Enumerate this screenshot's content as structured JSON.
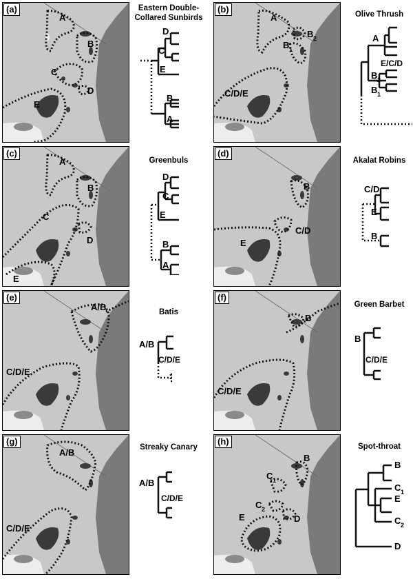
{
  "panels": [
    {
      "letter": "(a)",
      "title": "Eastern Double-Collared Sunbirds",
      "map_labels": [
        "A",
        "B",
        "C",
        "D",
        "E"
      ],
      "tree_labels": [
        "D",
        "C",
        "E",
        "B",
        "A"
      ]
    },
    {
      "letter": "(b)",
      "title": "Olive Thrush",
      "map_labels": [
        "A",
        "B",
        "B",
        "C/D/E"
      ],
      "map_subs": [
        "2",
        "1"
      ],
      "tree_labels": [
        "A",
        "E/C/D",
        "B",
        "B"
      ],
      "tree_subs": [
        "2",
        "1"
      ]
    },
    {
      "letter": "(c)",
      "title": "Greenbuls",
      "map_labels": [
        "A",
        "B",
        "C",
        "D",
        "E"
      ],
      "tree_labels": [
        "D",
        "C",
        "E",
        "B",
        "A"
      ]
    },
    {
      "letter": "(d)",
      "title": "Akalat Robins",
      "map_labels": [
        "B",
        "C/D",
        "E"
      ],
      "tree_labels": [
        "C/D",
        "E",
        "B"
      ]
    },
    {
      "letter": "(e)",
      "title": "Batis",
      "map_labels": [
        "A/B",
        "C/D/E"
      ],
      "tree_labels": [
        "A/B",
        "C/D/E"
      ]
    },
    {
      "letter": "(f)",
      "title": "Green Barbet",
      "map_labels": [
        "B",
        "C/D/E"
      ],
      "tree_labels": [
        "B",
        "C/D/E"
      ]
    },
    {
      "letter": "(g)",
      "title": "Streaky Canary",
      "map_labels": [
        "A/B",
        "C/D/E"
      ],
      "tree_labels": [
        "A/B",
        "C/D/E"
      ]
    },
    {
      "letter": "(h)",
      "title": "Spot-throat",
      "map_labels": [
        "B",
        "C",
        "C",
        "E",
        "D"
      ],
      "map_subs": [
        "1",
        "2"
      ],
      "tree_labels": [
        "B",
        "C",
        "E",
        "C",
        "D"
      ],
      "tree_subs": [
        "1",
        "2"
      ]
    }
  ],
  "colors": {
    "land": "#c8c8c8",
    "sea": "#7a7a7a",
    "inland_light": "#ededed",
    "mountain": "#3a3a3a"
  }
}
